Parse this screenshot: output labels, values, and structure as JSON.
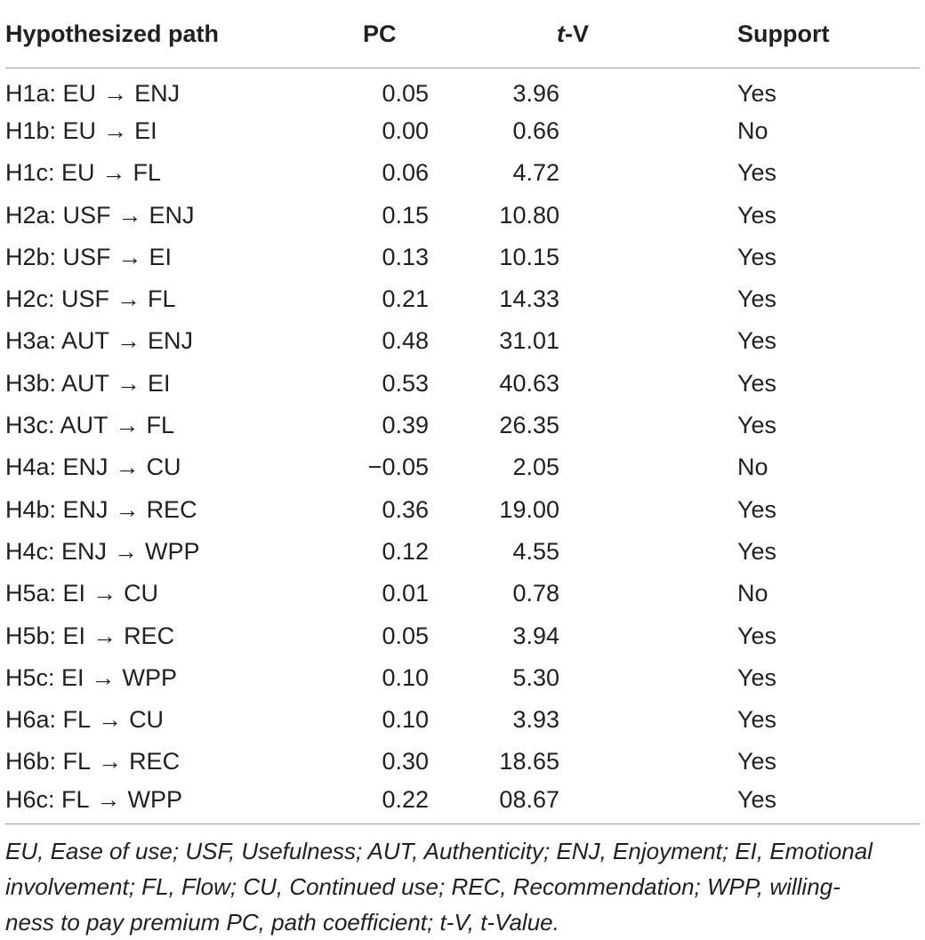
{
  "table": {
    "headers": {
      "path": "Hypothesized path",
      "pc": "PC",
      "tv_italic": "t",
      "tv_rest": "-V",
      "support": "Support"
    },
    "rows": [
      {
        "id": "H1a",
        "from": "EU",
        "to": "ENJ",
        "pc": "0.05",
        "tv": "3.96",
        "support": "Yes"
      },
      {
        "id": "H1b",
        "from": "EU",
        "to": "EI",
        "pc": "0.00",
        "tv": "0.66",
        "support": "No"
      },
      {
        "id": "H1c",
        "from": "EU",
        "to": "FL",
        "pc": "0.06",
        "tv": "4.72",
        "support": "Yes"
      },
      {
        "id": "H2a",
        "from": "USF",
        "to": "ENJ",
        "pc": "0.15",
        "tv": "10.80",
        "support": "Yes"
      },
      {
        "id": "H2b",
        "from": "USF",
        "to": "EI",
        "pc": "0.13",
        "tv": "10.15",
        "support": "Yes"
      },
      {
        "id": "H2c",
        "from": "USF",
        "to": "FL",
        "pc": "0.21",
        "tv": "14.33",
        "support": "Yes"
      },
      {
        "id": "H3a",
        "from": "AUT",
        "to": "ENJ",
        "pc": "0.48",
        "tv": "31.01",
        "support": "Yes"
      },
      {
        "id": "H3b",
        "from": "AUT",
        "to": "EI",
        "pc": "0.53",
        "tv": "40.63",
        "support": "Yes"
      },
      {
        "id": "H3c",
        "from": "AUT",
        "to": "FL",
        "pc": "0.39",
        "tv": "26.35",
        "support": "Yes"
      },
      {
        "id": "H4a",
        "from": "ENJ",
        "to": "CU",
        "pc": "−0.05",
        "tv": "2.05",
        "support": "No"
      },
      {
        "id": "H4b",
        "from": "ENJ",
        "to": "REC",
        "pc": "0.36",
        "tv": "19.00",
        "support": "Yes"
      },
      {
        "id": "H4c",
        "from": "ENJ",
        "to": "WPP",
        "pc": "0.12",
        "tv": "4.55",
        "support": "Yes"
      },
      {
        "id": "H5a",
        "from": "EI",
        "to": "CU",
        "pc": "0.01",
        "tv": "0.78",
        "support": "No"
      },
      {
        "id": "H5b",
        "from": "EI",
        "to": "REC",
        "pc": "0.05",
        "tv": "3.94",
        "support": "Yes"
      },
      {
        "id": "H5c",
        "from": "EI",
        "to": "WPP",
        "pc": "0.10",
        "tv": "5.30",
        "support": "Yes"
      },
      {
        "id": "H6a",
        "from": "FL",
        "to": "CU",
        "pc": "0.10",
        "tv": "3.93",
        "support": "Yes"
      },
      {
        "id": "H6b",
        "from": "FL",
        "to": "REC",
        "pc": "0.30",
        "tv": "18.65",
        "support": "Yes"
      },
      {
        "id": "H6c",
        "from": "FL",
        "to": "WPP",
        "pc": "0.22",
        "tv": "08.67",
        "support": "Yes"
      }
    ],
    "arrow": "→"
  },
  "footnote": {
    "line1": "EU, Ease of use; USF, Usefulness; AUT, Authenticity; ENJ, Enjoyment; EI, Emotional",
    "line2": "involvement; FL, Flow; CU, Continued use; REC, Recommendation; WPP, willing-",
    "line3": "ness to pay premium PC, path coefficient; t-V, t-Value."
  }
}
